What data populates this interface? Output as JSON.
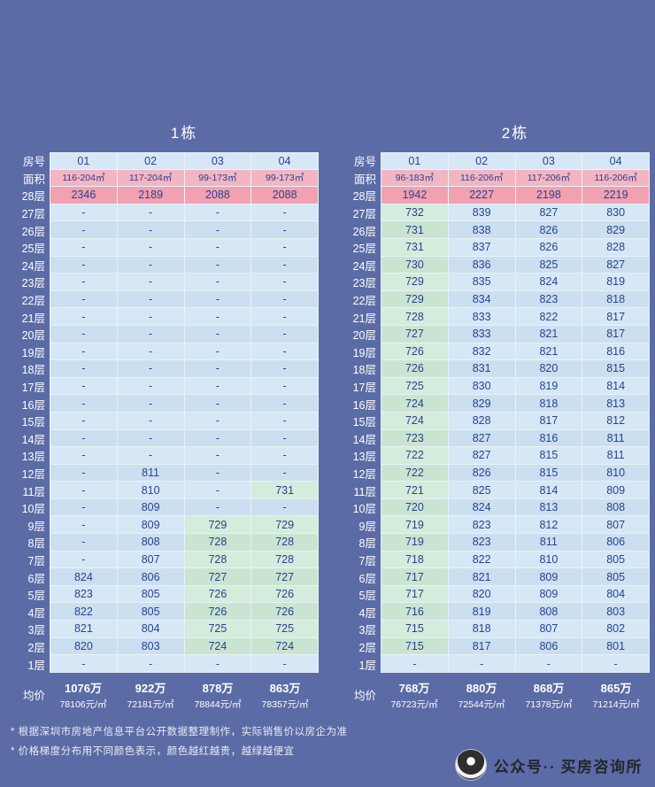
{
  "colors": {
    "page_bg": "#5b6ba5",
    "grid_line": "#e9f2f9",
    "cell_text": "#2a418f",
    "header_text": "#ffffff",
    "cell_blue": "#d6e8f6",
    "cell_blue_alt": "#cbdff0",
    "cell_green": "#d4ecdb",
    "cell_green_alt": "#c9e5d2",
    "cell_pink": "#f2a1b1",
    "area_pink": "#f3b5c2",
    "footnote_text": "#e8edf5",
    "watermark_text": "#23262f"
  },
  "chart_data": [
    {
      "type": "table",
      "title": "1栋",
      "corner_labels": {
        "room": "房号",
        "area": "面积",
        "avg": "均价"
      },
      "columns": [
        "01",
        "02",
        "03",
        "04"
      ],
      "areas": [
        "116-204㎡",
        "117-204㎡",
        "99-173㎡",
        "99-173㎡"
      ],
      "floors": [
        {
          "label": "28层",
          "values": [
            "2346",
            "2189",
            "2088",
            "2088"
          ]
        },
        {
          "label": "27层",
          "values": [
            "-",
            "-",
            "-",
            "-"
          ]
        },
        {
          "label": "26层",
          "values": [
            "-",
            "-",
            "-",
            "-"
          ]
        },
        {
          "label": "25层",
          "values": [
            "-",
            "-",
            "-",
            "-"
          ]
        },
        {
          "label": "24层",
          "values": [
            "-",
            "-",
            "-",
            "-"
          ]
        },
        {
          "label": "23层",
          "values": [
            "-",
            "-",
            "-",
            "-"
          ]
        },
        {
          "label": "22层",
          "values": [
            "-",
            "-",
            "-",
            "-"
          ]
        },
        {
          "label": "21层",
          "values": [
            "-",
            "-",
            "-",
            "-"
          ]
        },
        {
          "label": "20层",
          "values": [
            "-",
            "-",
            "-",
            "-"
          ]
        },
        {
          "label": "19层",
          "values": [
            "-",
            "-",
            "-",
            "-"
          ]
        },
        {
          "label": "18层",
          "values": [
            "-",
            "-",
            "-",
            "-"
          ]
        },
        {
          "label": "17层",
          "values": [
            "-",
            "-",
            "-",
            "-"
          ]
        },
        {
          "label": "16层",
          "values": [
            "-",
            "-",
            "-",
            "-"
          ]
        },
        {
          "label": "15层",
          "values": [
            "-",
            "-",
            "-",
            "-"
          ]
        },
        {
          "label": "14层",
          "values": [
            "-",
            "-",
            "-",
            "-"
          ]
        },
        {
          "label": "13层",
          "values": [
            "-",
            "-",
            "-",
            "-"
          ]
        },
        {
          "label": "12层",
          "values": [
            "-",
            "811",
            "-",
            "-"
          ]
        },
        {
          "label": "11层",
          "values": [
            "-",
            "810",
            "-",
            "731"
          ]
        },
        {
          "label": "10层",
          "values": [
            "-",
            "809",
            "-",
            "-"
          ]
        },
        {
          "label": "9层",
          "values": [
            "-",
            "809",
            "729",
            "729"
          ]
        },
        {
          "label": "8层",
          "values": [
            "-",
            "808",
            "728",
            "728"
          ]
        },
        {
          "label": "7层",
          "values": [
            "-",
            "807",
            "728",
            "728"
          ]
        },
        {
          "label": "6层",
          "values": [
            "824",
            "806",
            "727",
            "727"
          ]
        },
        {
          "label": "5层",
          "values": [
            "823",
            "805",
            "726",
            "726"
          ]
        },
        {
          "label": "4层",
          "values": [
            "822",
            "805",
            "726",
            "726"
          ]
        },
        {
          "label": "3层",
          "values": [
            "821",
            "804",
            "725",
            "725"
          ]
        },
        {
          "label": "2层",
          "values": [
            "820",
            "803",
            "724",
            "724"
          ]
        },
        {
          "label": "1层",
          "values": [
            "-",
            "-",
            "-",
            "-"
          ]
        }
      ],
      "averages": [
        {
          "price": "1076万",
          "per_sqm": "78106元/㎡"
        },
        {
          "price": "922万",
          "per_sqm": "72181元/㎡"
        },
        {
          "price": "878万",
          "per_sqm": "78844元/㎡"
        },
        {
          "price": "863万",
          "per_sqm": "78357元/㎡"
        }
      ]
    },
    {
      "type": "table",
      "title": "2栋",
      "corner_labels": {
        "room": "房号",
        "area": "面积",
        "avg": "均价"
      },
      "columns": [
        "01",
        "02",
        "03",
        "04"
      ],
      "areas": [
        "96-183㎡",
        "116-206㎡",
        "117-206㎡",
        "116-206㎡"
      ],
      "floors": [
        {
          "label": "28层",
          "values": [
            "1942",
            "2227",
            "2198",
            "2219"
          ]
        },
        {
          "label": "27层",
          "values": [
            "732",
            "839",
            "827",
            "830"
          ]
        },
        {
          "label": "26层",
          "values": [
            "731",
            "838",
            "826",
            "829"
          ]
        },
        {
          "label": "25层",
          "values": [
            "731",
            "837",
            "826",
            "828"
          ]
        },
        {
          "label": "24层",
          "values": [
            "730",
            "836",
            "825",
            "827"
          ]
        },
        {
          "label": "23层",
          "values": [
            "729",
            "835",
            "824",
            "819"
          ]
        },
        {
          "label": "22层",
          "values": [
            "729",
            "834",
            "823",
            "818"
          ]
        },
        {
          "label": "21层",
          "values": [
            "728",
            "833",
            "822",
            "817"
          ]
        },
        {
          "label": "20层",
          "values": [
            "727",
            "833",
            "821",
            "817"
          ]
        },
        {
          "label": "19层",
          "values": [
            "726",
            "832",
            "821",
            "816"
          ]
        },
        {
          "label": "18层",
          "values": [
            "726",
            "831",
            "820",
            "815"
          ]
        },
        {
          "label": "17层",
          "values": [
            "725",
            "830",
            "819",
            "814"
          ]
        },
        {
          "label": "16层",
          "values": [
            "724",
            "829",
            "818",
            "813"
          ]
        },
        {
          "label": "15层",
          "values": [
            "724",
            "828",
            "817",
            "812"
          ]
        },
        {
          "label": "14层",
          "values": [
            "723",
            "827",
            "816",
            "811"
          ]
        },
        {
          "label": "13层",
          "values": [
            "722",
            "827",
            "815",
            "811"
          ]
        },
        {
          "label": "12层",
          "values": [
            "722",
            "826",
            "815",
            "810"
          ]
        },
        {
          "label": "11层",
          "values": [
            "721",
            "825",
            "814",
            "809"
          ]
        },
        {
          "label": "10层",
          "values": [
            "720",
            "824",
            "813",
            "808"
          ]
        },
        {
          "label": "9层",
          "values": [
            "719",
            "823",
            "812",
            "807"
          ]
        },
        {
          "label": "8层",
          "values": [
            "719",
            "823",
            "811",
            "806"
          ]
        },
        {
          "label": "7层",
          "values": [
            "718",
            "822",
            "810",
            "805"
          ]
        },
        {
          "label": "6层",
          "values": [
            "717",
            "821",
            "809",
            "805"
          ]
        },
        {
          "label": "5层",
          "values": [
            "717",
            "820",
            "809",
            "804"
          ]
        },
        {
          "label": "4层",
          "values": [
            "716",
            "819",
            "808",
            "803"
          ]
        },
        {
          "label": "3层",
          "values": [
            "715",
            "818",
            "807",
            "802"
          ]
        },
        {
          "label": "2层",
          "values": [
            "715",
            "817",
            "806",
            "801"
          ]
        },
        {
          "label": "1层",
          "values": [
            "-",
            "-",
            "-",
            "-"
          ]
        }
      ],
      "averages": [
        {
          "price": "768万",
          "per_sqm": "76723元/㎡"
        },
        {
          "price": "880万",
          "per_sqm": "72544元/㎡"
        },
        {
          "price": "868万",
          "per_sqm": "71378元/㎡"
        },
        {
          "price": "865万",
          "per_sqm": "71214元/㎡"
        }
      ]
    }
  ],
  "footnotes": [
    "* 根据深圳市房地产信息平台公开数据整理制作，实际销售价以房企为准",
    "* 价格梯度分布用不同颜色表示，颜色越红越贵，越绿越便宜"
  ],
  "watermark": {
    "text": "公众号·· 买房咨询所"
  }
}
